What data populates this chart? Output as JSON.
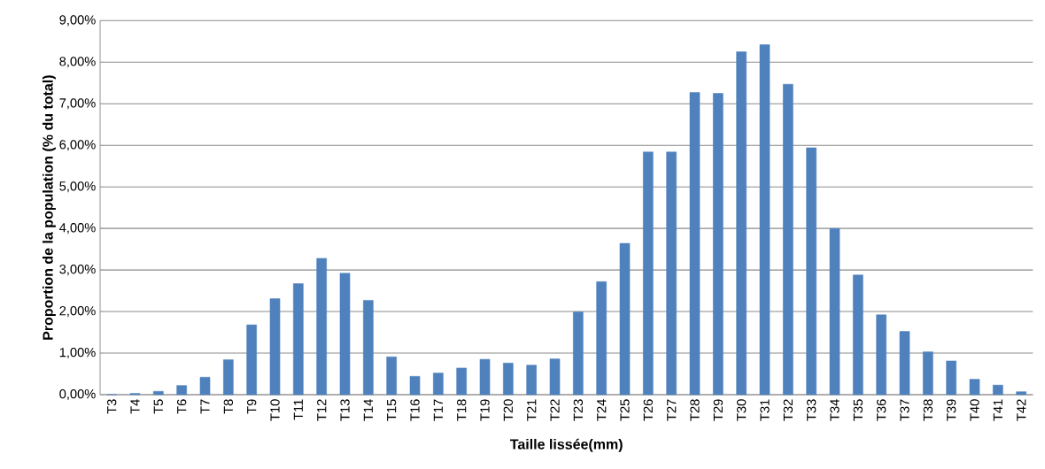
{
  "chart_data": {
    "type": "bar",
    "xlabel": "Taille lissée(mm)",
    "ylabel": "Proportion de la population (% du total)",
    "categories": [
      "T3",
      "T4",
      "T5",
      "T6",
      "T7",
      "T8",
      "T9",
      "T10",
      "T11",
      "T12",
      "T13",
      "T14",
      "T15",
      "T16",
      "T17",
      "T18",
      "T19",
      "T20",
      "T21",
      "T22",
      "T23",
      "T24",
      "T25",
      "T26",
      "T27",
      "T28",
      "T29",
      "T30",
      "T31",
      "T32",
      "T33",
      "T34",
      "T35",
      "T36",
      "T37",
      "T38",
      "T39",
      "T40",
      "T41",
      "T42"
    ],
    "values": [
      0,
      0.03,
      0.08,
      0.22,
      0.42,
      0.84,
      1.68,
      2.31,
      2.67,
      3.28,
      2.92,
      2.27,
      0.91,
      0.44,
      0.52,
      0.64,
      0.85,
      0.76,
      0.71,
      0.86,
      1.99,
      2.72,
      3.64,
      5.84,
      5.84,
      7.27,
      7.25,
      8.25,
      8.42,
      7.47,
      5.94,
      4.0,
      2.88,
      1.92,
      1.52,
      1.03,
      0.81,
      0.37,
      0.23,
      0.07
    ],
    "color": "#4f81bd",
    "ylim": [
      0,
      9
    ],
    "yticks": [
      {
        "value": 0,
        "label": "0,00%"
      },
      {
        "value": 1,
        "label": "1,00%"
      },
      {
        "value": 2,
        "label": "2,00%"
      },
      {
        "value": 3,
        "label": "3,00%"
      },
      {
        "value": 4,
        "label": "4,00%"
      },
      {
        "value": 5,
        "label": "5,00%"
      },
      {
        "value": 6,
        "label": "6,00%"
      },
      {
        "value": 7,
        "label": "7,00%"
      },
      {
        "value": 8,
        "label": "8,00%"
      },
      {
        "value": 9,
        "label": "9,00%"
      }
    ],
    "grid": "y"
  }
}
